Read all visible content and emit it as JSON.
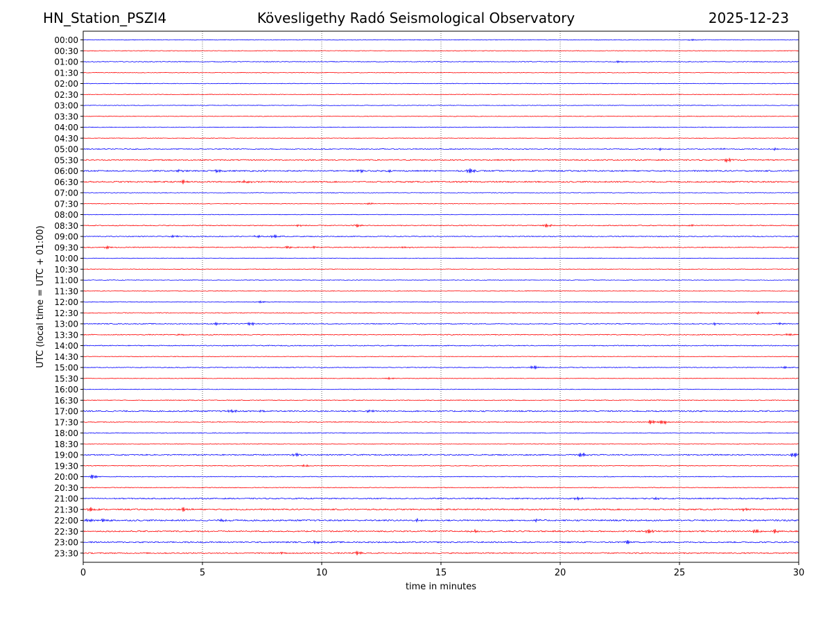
{
  "header": {
    "station": "HN_Station_PSZI4",
    "observatory": "Kövesligethy Radó Seismological Observatory",
    "date": "2025-12-23"
  },
  "chart_data": {
    "type": "line",
    "title": "Kövesligethy Radó Seismological Observatory",
    "xlabel": "time in minutes",
    "ylabel": "UTC (local time = UTC + 01:00)",
    "xlim": [
      0,
      30
    ],
    "xticks": [
      "0",
      "5",
      "10",
      "15",
      "20",
      "25",
      "30"
    ],
    "grid": "vertical dotted at x = 5, 10, 15, 20, 25",
    "colors": {
      "even_rows": "#0000ff",
      "odd_rows": "#ff0000"
    },
    "rows": [
      "00:00",
      "00:30",
      "01:00",
      "01:30",
      "02:00",
      "02:30",
      "03:00",
      "03:30",
      "04:00",
      "04:30",
      "05:00",
      "05:30",
      "06:00",
      "06:30",
      "07:00",
      "07:30",
      "08:00",
      "08:30",
      "09:00",
      "09:30",
      "10:00",
      "10:30",
      "11:00",
      "11:30",
      "12:00",
      "12:30",
      "13:00",
      "13:30",
      "14:00",
      "14:30",
      "15:00",
      "15:30",
      "16:00",
      "16:30",
      "17:00",
      "17:30",
      "18:00",
      "18:30",
      "19:00",
      "19:30",
      "20:00",
      "20:30",
      "21:00",
      "21:30",
      "22:00",
      "22:30",
      "23:00",
      "23:30"
    ],
    "noise_levels": [
      0.4,
      0.4,
      0.5,
      0.4,
      0.4,
      0.4,
      0.4,
      0.4,
      0.4,
      0.4,
      0.6,
      0.8,
      0.9,
      0.9,
      0.4,
      0.4,
      0.4,
      0.6,
      0.6,
      0.6,
      0.4,
      0.4,
      0.4,
      0.4,
      0.5,
      0.5,
      0.6,
      0.6,
      0.6,
      0.4,
      0.5,
      0.4,
      0.4,
      0.5,
      0.9,
      0.6,
      0.5,
      0.4,
      0.8,
      0.5,
      0.5,
      0.5,
      0.8,
      0.9,
      1.0,
      0.9,
      0.9,
      0.8
    ],
    "events": [
      {
        "row": "00:00",
        "t": 25.5,
        "amp": 0.8
      },
      {
        "row": "01:00",
        "t": 22.5,
        "amp": 1.0
      },
      {
        "row": "05:00",
        "t": 24.2,
        "amp": 1.0
      },
      {
        "row": "05:00",
        "t": 26.8,
        "amp": 0.8
      },
      {
        "row": "05:00",
        "t": 29.0,
        "amp": 0.8
      },
      {
        "row": "05:30",
        "t": 18.0,
        "amp": 0.7
      },
      {
        "row": "05:30",
        "t": 27.0,
        "amp": 1.8
      },
      {
        "row": "05:30",
        "t": 28.7,
        "amp": 0.9
      },
      {
        "row": "06:00",
        "t": 4.0,
        "amp": 1.0
      },
      {
        "row": "06:00",
        "t": 5.6,
        "amp": 1.4
      },
      {
        "row": "06:00",
        "t": 11.6,
        "amp": 1.3
      },
      {
        "row": "06:00",
        "t": 12.8,
        "amp": 1.0
      },
      {
        "row": "06:00",
        "t": 16.2,
        "amp": 2.4
      },
      {
        "row": "06:30",
        "t": 4.2,
        "amp": 1.8
      },
      {
        "row": "06:30",
        "t": 6.8,
        "amp": 1.5
      },
      {
        "row": "07:30",
        "t": 12.0,
        "amp": 0.9
      },
      {
        "row": "08:30",
        "t": 9.0,
        "amp": 1.0
      },
      {
        "row": "08:30",
        "t": 11.5,
        "amp": 1.5
      },
      {
        "row": "08:30",
        "t": 19.4,
        "amp": 1.8
      },
      {
        "row": "08:30",
        "t": 25.5,
        "amp": 0.8
      },
      {
        "row": "09:00",
        "t": 3.8,
        "amp": 1.2
      },
      {
        "row": "09:00",
        "t": 7.3,
        "amp": 1.2
      },
      {
        "row": "09:00",
        "t": 8.0,
        "amp": 1.8
      },
      {
        "row": "09:30",
        "t": 1.0,
        "amp": 1.5
      },
      {
        "row": "09:30",
        "t": 8.6,
        "amp": 1.4
      },
      {
        "row": "09:30",
        "t": 9.7,
        "amp": 1.0
      },
      {
        "row": "09:30",
        "t": 13.5,
        "amp": 0.9
      },
      {
        "row": "12:00",
        "t": 7.5,
        "amp": 0.9
      },
      {
        "row": "12:30",
        "t": 28.3,
        "amp": 1.2
      },
      {
        "row": "13:00",
        "t": 5.6,
        "amp": 1.2
      },
      {
        "row": "13:00",
        "t": 7.0,
        "amp": 2.0
      },
      {
        "row": "13:00",
        "t": 26.5,
        "amp": 1.0
      },
      {
        "row": "13:00",
        "t": 29.2,
        "amp": 1.0
      },
      {
        "row": "13:30",
        "t": 4.1,
        "amp": 1.0
      },
      {
        "row": "13:30",
        "t": 29.6,
        "amp": 1.3
      },
      {
        "row": "15:00",
        "t": 18.9,
        "amp": 2.0
      },
      {
        "row": "15:00",
        "t": 29.4,
        "amp": 1.0
      },
      {
        "row": "15:30",
        "t": 12.8,
        "amp": 0.8
      },
      {
        "row": "17:00",
        "t": 6.2,
        "amp": 1.5
      },
      {
        "row": "17:00",
        "t": 7.5,
        "amp": 1.3
      },
      {
        "row": "17:00",
        "t": 12.0,
        "amp": 1.2
      },
      {
        "row": "17:30",
        "t": 23.8,
        "amp": 2.2
      },
      {
        "row": "17:30",
        "t": 24.3,
        "amp": 2.5
      },
      {
        "row": "19:00",
        "t": 8.9,
        "amp": 1.8
      },
      {
        "row": "19:00",
        "t": 20.9,
        "amp": 2.5
      },
      {
        "row": "19:00",
        "t": 29.8,
        "amp": 2.8
      },
      {
        "row": "19:30",
        "t": 9.3,
        "amp": 1.0
      },
      {
        "row": "20:00",
        "t": 0.4,
        "amp": 2.2
      },
      {
        "row": "21:00",
        "t": 20.7,
        "amp": 1.5
      },
      {
        "row": "21:00",
        "t": 24.0,
        "amp": 1.0
      },
      {
        "row": "21:30",
        "t": 0.3,
        "amp": 2.0
      },
      {
        "row": "21:30",
        "t": 4.2,
        "amp": 2.0
      },
      {
        "row": "21:30",
        "t": 27.7,
        "amp": 1.3
      },
      {
        "row": "22:00",
        "t": 0.2,
        "amp": 1.6
      },
      {
        "row": "22:00",
        "t": 0.9,
        "amp": 1.6
      },
      {
        "row": "22:00",
        "t": 5.9,
        "amp": 1.3
      },
      {
        "row": "22:00",
        "t": 14.0,
        "amp": 1.2
      },
      {
        "row": "22:00",
        "t": 19.0,
        "amp": 1.4
      },
      {
        "row": "22:30",
        "t": 16.4,
        "amp": 1.3
      },
      {
        "row": "22:30",
        "t": 23.7,
        "amp": 2.2
      },
      {
        "row": "22:30",
        "t": 28.2,
        "amp": 2.4
      },
      {
        "row": "22:30",
        "t": 29.0,
        "amp": 2.0
      },
      {
        "row": "23:00",
        "t": 9.8,
        "amp": 1.3
      },
      {
        "row": "23:00",
        "t": 22.8,
        "amp": 1.8
      },
      {
        "row": "23:30",
        "t": 11.5,
        "amp": 1.8
      },
      {
        "row": "23:30",
        "t": 8.4,
        "amp": 0.9
      }
    ]
  }
}
